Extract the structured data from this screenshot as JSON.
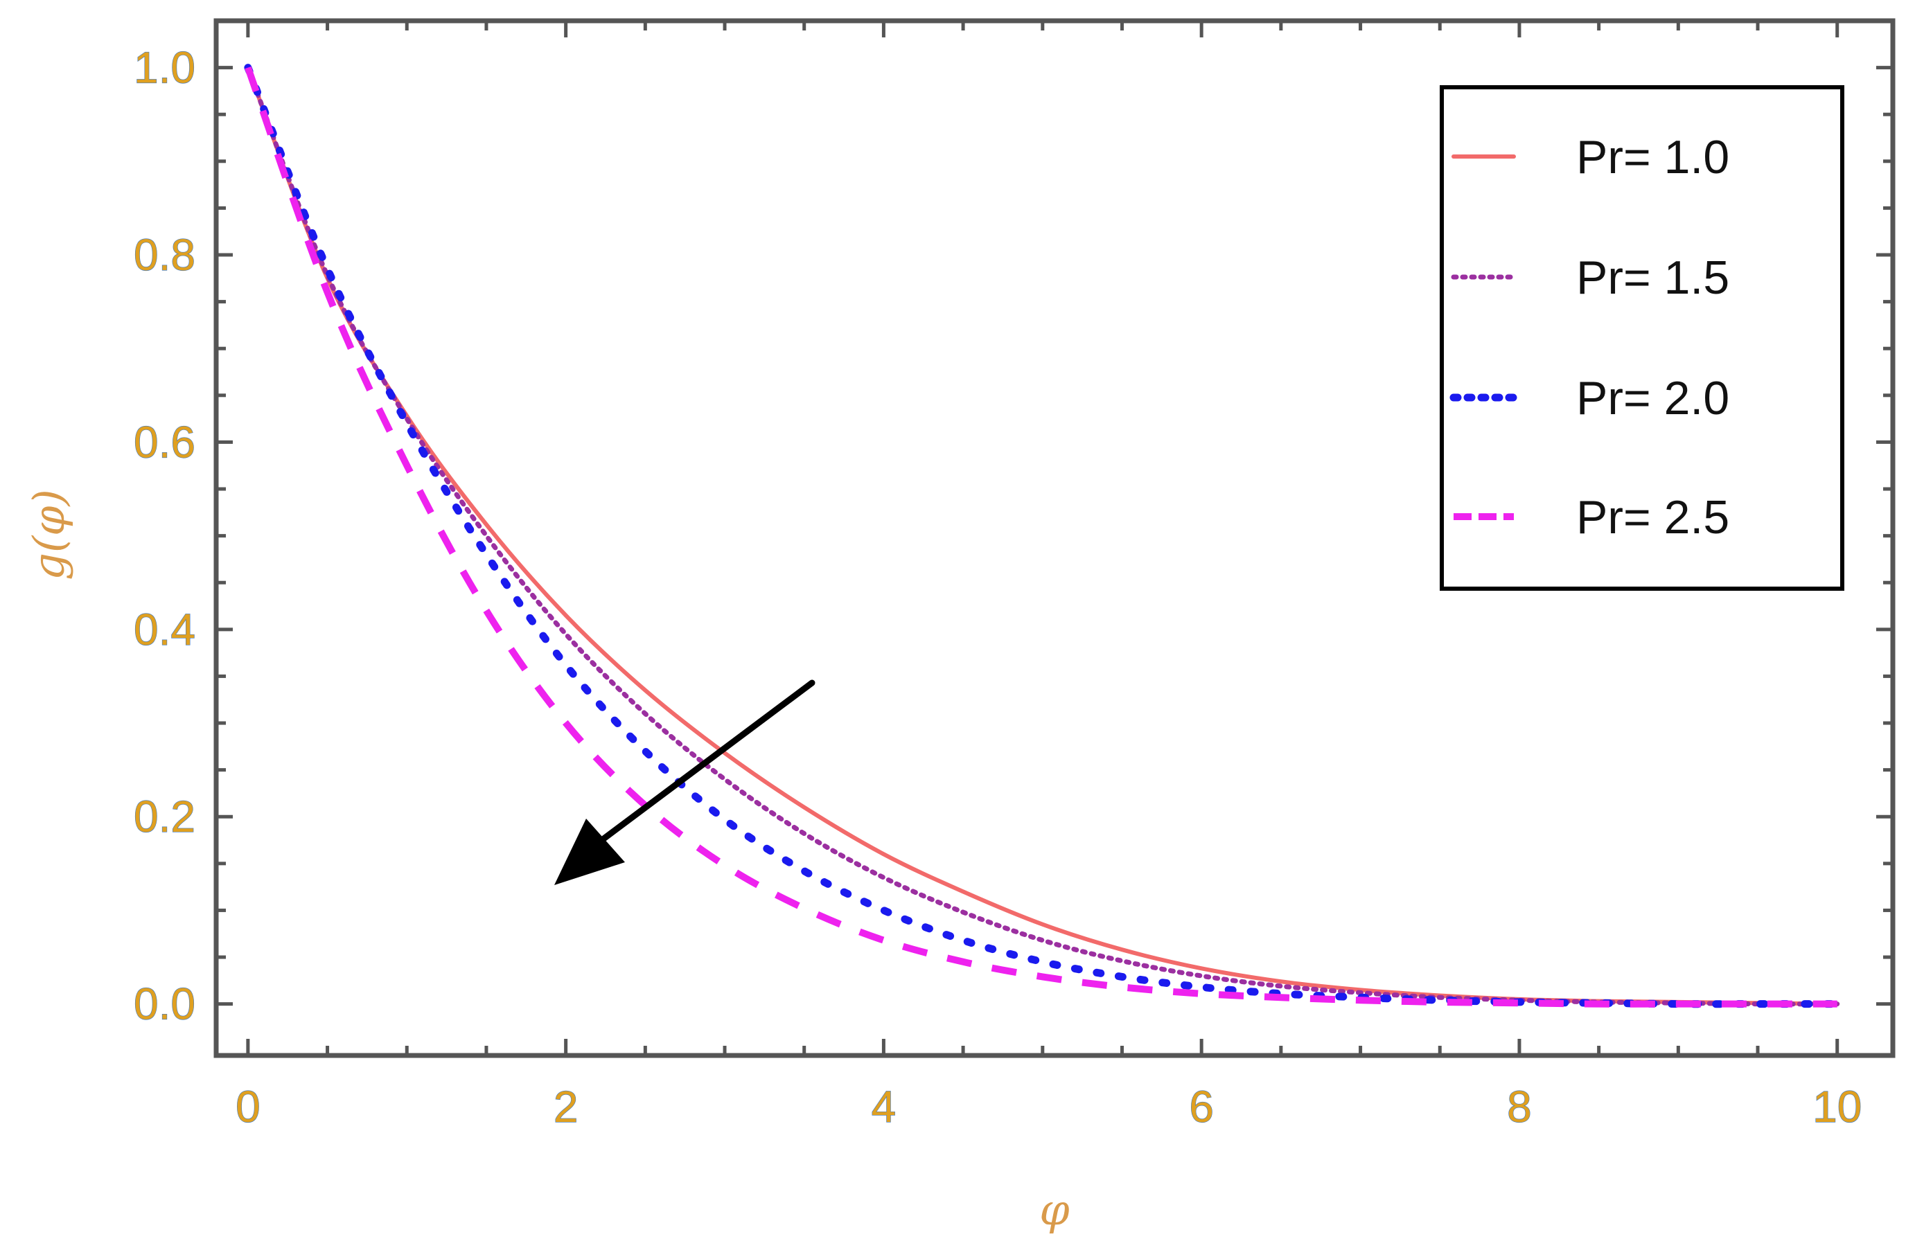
{
  "chart_data": {
    "type": "line",
    "title": "",
    "xlabel": "φ",
    "ylabel": "g(φ)",
    "xlim": [
      -0.2,
      10.35
    ],
    "ylim": [
      -0.055,
      1.05
    ],
    "xticks": [
      0,
      2,
      4,
      6,
      8,
      10
    ],
    "xtick_labels": [
      "0",
      "2",
      "4",
      "6",
      "8",
      "10"
    ],
    "yticks": [
      0.0,
      0.2,
      0.4,
      0.6,
      0.8,
      1.0
    ],
    "ytick_labels": [
      "0.0",
      "0.2",
      "0.4",
      "0.6",
      "0.8",
      "1.0"
    ],
    "grid": false,
    "legend_position": "top-right",
    "x": [
      0,
      0.5,
      1,
      1.5,
      2,
      2.5,
      3,
      3.5,
      4,
      4.5,
      5,
      5.5,
      6,
      6.5,
      7,
      7.5,
      8,
      8.5,
      9,
      9.5,
      10
    ],
    "series": [
      {
        "name": "Pr= 1.0",
        "color": "#f26a6a",
        "style": "solid",
        "values": [
          1.0,
          0.775,
          0.628,
          0.512,
          0.415,
          0.335,
          0.268,
          0.21,
          0.16,
          0.12,
          0.085,
          0.058,
          0.038,
          0.024,
          0.015,
          0.009,
          0.005,
          0.003,
          0.002,
          0.001,
          0.0
        ]
      },
      {
        "name": "Pr= 1.5",
        "color": "#9b2fa0",
        "style": "dotted",
        "values": [
          1.0,
          0.778,
          0.625,
          0.5,
          0.395,
          0.31,
          0.24,
          0.182,
          0.135,
          0.098,
          0.068,
          0.046,
          0.03,
          0.019,
          0.012,
          0.007,
          0.004,
          0.002,
          0.001,
          0.0,
          0.0
        ]
      },
      {
        "name": "Pr= 2.0",
        "color": "#1a1aee",
        "style": "dotted-thick",
        "values": [
          1.0,
          0.785,
          0.62,
          0.48,
          0.362,
          0.27,
          0.197,
          0.142,
          0.1,
          0.068,
          0.045,
          0.029,
          0.018,
          0.011,
          0.007,
          0.004,
          0.002,
          0.001,
          0.0,
          0.0,
          0.0
        ]
      },
      {
        "name": "Pr= 2.5",
        "color": "#ee22ee",
        "style": "dashed",
        "values": [
          1.0,
          0.76,
          0.575,
          0.42,
          0.3,
          0.212,
          0.148,
          0.102,
          0.068,
          0.045,
          0.029,
          0.018,
          0.011,
          0.007,
          0.004,
          0.002,
          0.001,
          0.0,
          0.0,
          0.0,
          0.0
        ]
      }
    ],
    "colors": {
      "frame": "#555555",
      "tick_label": "#e0a020",
      "tick_label_shadow": "#3b78c8",
      "axis_label": "#d99a4a",
      "arrow": "#000000",
      "legend_border": "#000000"
    }
  }
}
